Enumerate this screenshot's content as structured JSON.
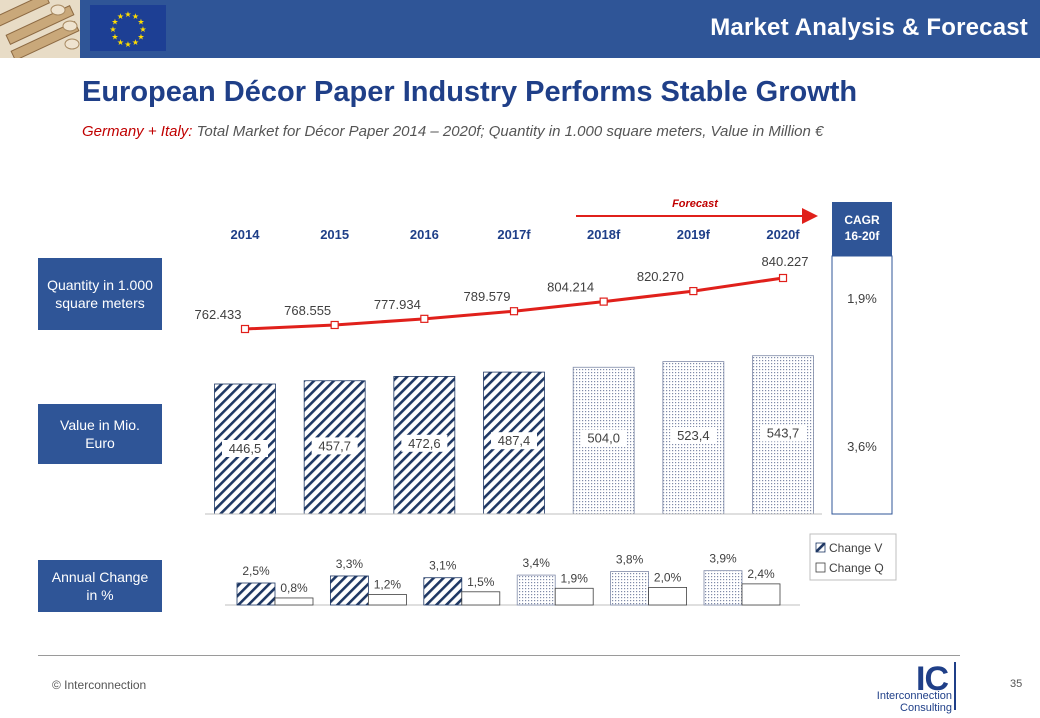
{
  "header": {
    "title": "Market Analysis & Forecast"
  },
  "slide": {
    "title": "European Décor Paper Industry Performs Stable Growth",
    "subtitle_lead": "Germany + Italy:",
    "subtitle_rest": " Total Market for Décor Paper 2014 – 2020f; Quantity in 1.000 square meters, Value in Million €"
  },
  "row_labels": {
    "quantity": "Quantity in 1.000 square meters",
    "value": "Value in Mio. Euro",
    "change": "Annual Change in %"
  },
  "forecast_label": "Forecast",
  "cagr": {
    "header": "CAGR 16-20f",
    "quantity": "1,9%",
    "value": "3,6%"
  },
  "colors": {
    "brand": "#2f5597",
    "title": "#1f3f88",
    "line": "#e0201b",
    "bar_pattern": "#1f3864",
    "forecast_dots": "#7f8aa8"
  },
  "chart_data": {
    "type": "bar",
    "categories": [
      "2014",
      "2015",
      "2016",
      "2017f",
      "2018f",
      "2019f",
      "2020f"
    ],
    "forecast_start_index": 4,
    "quantity": {
      "type": "line",
      "values": [
        762433,
        768555,
        777934,
        789579,
        804214,
        820270,
        840227
      ],
      "labels": [
        "762.433",
        "768.555",
        "777.934",
        "789.579",
        "804.214",
        "820.270",
        "840.227"
      ]
    },
    "value": {
      "type": "bar",
      "values": [
        446.5,
        457.7,
        472.6,
        487.4,
        504.0,
        523.4,
        543.7
      ],
      "labels": [
        "446,5",
        "457,7",
        "472,6",
        "487,4",
        "504,0",
        "523,4",
        "543,7"
      ]
    },
    "annual_change": {
      "type": "bar",
      "series": [
        {
          "name": "Change V",
          "values": [
            2.5,
            3.3,
            3.1,
            3.4,
            3.8,
            3.9
          ],
          "labels": [
            "2,5%",
            "3,3%",
            "3,1%",
            "3,4%",
            "3,8%",
            "3,9%"
          ]
        },
        {
          "name": "Change Q",
          "values": [
            0.8,
            1.2,
            1.5,
            1.9,
            2.0,
            2.4
          ],
          "labels": [
            "0,8%",
            "1,2%",
            "1,5%",
            "1,9%",
            "2,0%",
            "2,4%"
          ]
        }
      ]
    }
  },
  "footer": {
    "copyright": "© Interconnection",
    "page": "35",
    "logo_mark": "IC",
    "logo_line1": "Interconnection",
    "logo_line2": "Consulting"
  }
}
